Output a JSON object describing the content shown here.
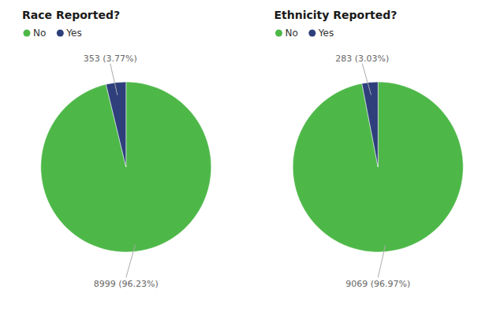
{
  "chart_data": [
    {
      "type": "pie",
      "title": "Race Reported?",
      "categories": [
        "No",
        "Yes"
      ],
      "values": [
        8999,
        353
      ],
      "colors": [
        "#4db848",
        "#2e3f7c"
      ],
      "data_labels": true,
      "value_labels": [
        "8999 (96.23%)",
        "353 (3.77%)"
      ],
      "legend": "top"
    },
    {
      "type": "pie",
      "title": "Ethnicity Reported?",
      "categories": [
        "No",
        "Yes"
      ],
      "values": [
        9069,
        283
      ],
      "colors": [
        "#4db848",
        "#2e3f7c"
      ],
      "data_labels": true,
      "value_labels": [
        "9069 (96.97%)",
        "283 (3.03%)"
      ],
      "legend": "top"
    }
  ]
}
